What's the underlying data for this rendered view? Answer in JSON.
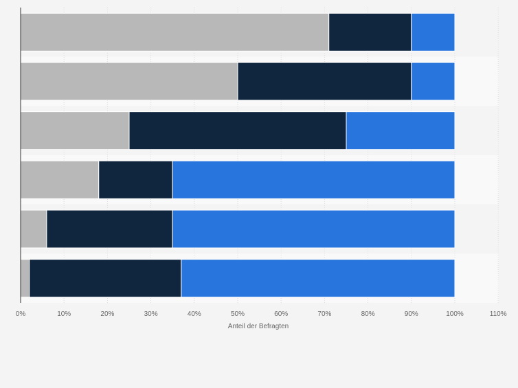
{
  "chart_data": {
    "type": "bar",
    "orientation": "horizontal",
    "stacked": true,
    "title": "",
    "xlabel": "Anteil der Befragten",
    "ylabel": "",
    "xlim": [
      0,
      110
    ],
    "x_ticks": [
      "0%",
      "10%",
      "20%",
      "30%",
      "40%",
      "50%",
      "60%",
      "70%",
      "80%",
      "90%",
      "100%",
      "110%"
    ],
    "grid": true,
    "legend": "none",
    "categories": [
      "",
      "",
      "",
      "",
      "",
      ""
    ],
    "series": [
      {
        "values": [
          71,
          50,
          25,
          18,
          6,
          2
        ],
        "color": "#b8b8b8"
      },
      {
        "values": [
          19,
          40,
          50,
          17,
          29,
          35
        ],
        "color": "#10263e"
      },
      {
        "values": [
          10,
          10,
          25,
          65,
          65,
          63
        ],
        "color": "#2876dd"
      }
    ]
  }
}
